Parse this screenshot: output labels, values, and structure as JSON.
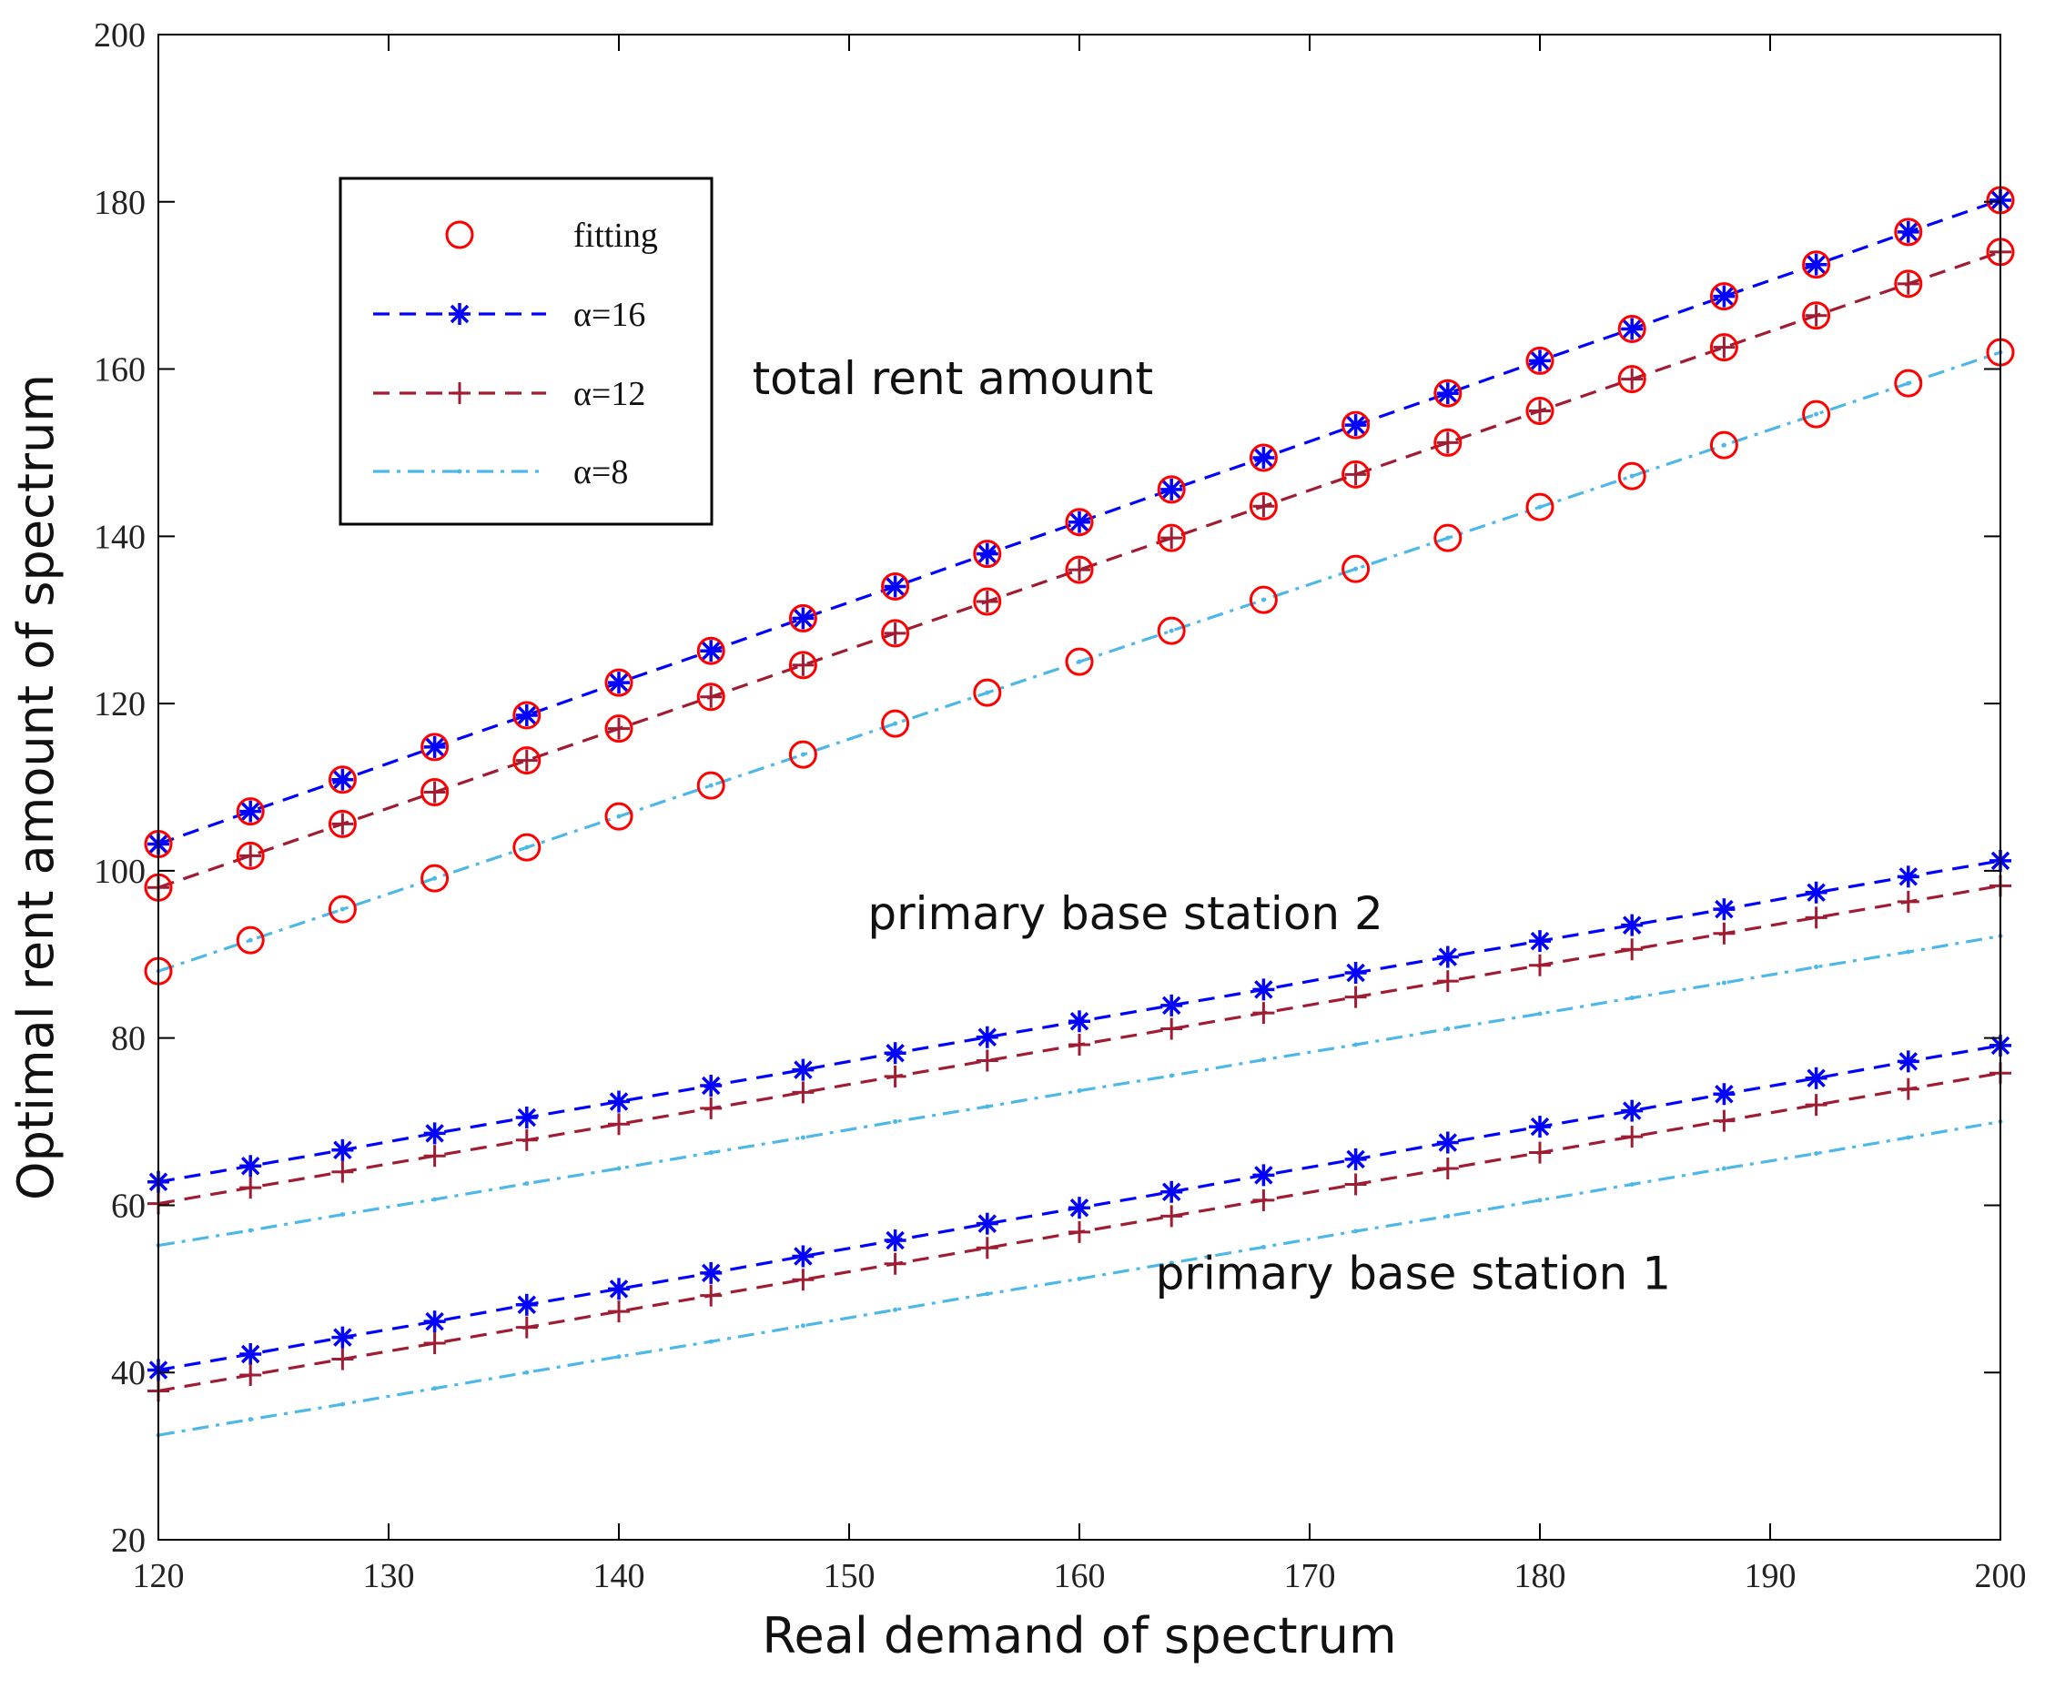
{
  "chart_data": {
    "type": "line",
    "title": "",
    "xlabel": "Real demand of spectrum",
    "ylabel": "Optimal rent amount of spectrum",
    "xlim": [
      120,
      200
    ],
    "ylim": [
      20,
      200
    ],
    "xticks": [
      120,
      130,
      140,
      150,
      160,
      170,
      180,
      190,
      200
    ],
    "yticks": [
      20,
      40,
      60,
      80,
      100,
      120,
      140,
      160,
      180,
      200
    ],
    "grid": false,
    "legend_position": "top-left",
    "x": [
      120,
      124,
      128,
      132,
      136,
      140,
      144,
      148,
      152,
      156,
      160,
      164,
      168,
      172,
      176,
      180,
      184,
      188,
      192,
      196,
      200
    ],
    "legend": [
      {
        "label": "fitting",
        "marker": "circle",
        "color": "#ff0000",
        "line": "none"
      },
      {
        "label": "α=16",
        "marker": "asterisk",
        "color": "#0000ff",
        "line": "dashed"
      },
      {
        "label": "α=12",
        "marker": "plus",
        "color": "#a01c32",
        "line": "dashed"
      },
      {
        "label": "α=8",
        "marker": "dot",
        "color": "#4db8e8",
        "line": "dashdot"
      }
    ],
    "groups": [
      {
        "name": "total rent amount",
        "has_fitting": true,
        "series": [
          {
            "name": "α=16",
            "values": [
              103.2,
              107.1,
              110.9,
              114.8,
              118.6,
              122.5,
              126.3,
              130.2,
              134.0,
              137.9,
              141.7,
              145.6,
              149.4,
              153.3,
              157.1,
              161.0,
              164.8,
              168.7,
              172.5,
              176.4,
              180.2
            ]
          },
          {
            "name": "α=12",
            "values": [
              98.0,
              101.8,
              105.6,
              109.4,
              113.2,
              117.0,
              120.8,
              124.6,
              128.4,
              132.2,
              136.0,
              139.8,
              143.6,
              147.4,
              151.2,
              155.0,
              158.8,
              162.6,
              166.4,
              170.2,
              174.0
            ]
          },
          {
            "name": "α=8",
            "values": [
              88.0,
              91.7,
              95.4,
              99.1,
              102.8,
              106.5,
              110.2,
              113.9,
              117.6,
              121.3,
              125.0,
              128.7,
              132.4,
              136.1,
              139.8,
              143.5,
              147.2,
              150.9,
              154.6,
              158.3,
              162.0
            ]
          }
        ]
      },
      {
        "name": "primary base station 2",
        "has_fitting": false,
        "series": [
          {
            "name": "α=16",
            "values": [
              62.8,
              64.7,
              66.6,
              68.6,
              70.5,
              72.4,
              74.3,
              76.2,
              78.2,
              80.1,
              82.0,
              83.9,
              85.8,
              87.8,
              89.7,
              91.6,
              93.5,
              95.4,
              97.4,
              99.3,
              101.2
            ]
          },
          {
            "name": "α=12",
            "values": [
              60.2,
              62.1,
              64.0,
              65.9,
              67.8,
              69.7,
              71.6,
              73.5,
              75.4,
              77.3,
              79.2,
              81.1,
              83.0,
              84.9,
              86.8,
              88.7,
              90.6,
              92.5,
              94.4,
              96.3,
              98.2
            ]
          },
          {
            "name": "α=8",
            "values": [
              55.2,
              57.0,
              58.9,
              60.7,
              62.6,
              64.4,
              66.3,
              68.1,
              70.0,
              71.8,
              73.7,
              75.5,
              77.4,
              79.2,
              81.1,
              82.9,
              84.8,
              86.6,
              88.5,
              90.3,
              92.2
            ]
          }
        ]
      },
      {
        "name": "primary base station 1",
        "has_fitting": false,
        "series": [
          {
            "name": "α=16",
            "values": [
              40.3,
              42.2,
              44.2,
              46.1,
              48.1,
              50.0,
              51.9,
              53.9,
              55.8,
              57.8,
              59.7,
              61.6,
              63.6,
              65.5,
              67.5,
              69.4,
              71.3,
              73.3,
              75.2,
              77.2,
              79.1
            ]
          },
          {
            "name": "α=12",
            "values": [
              37.8,
              39.7,
              41.6,
              43.5,
              45.4,
              47.3,
              49.2,
              51.1,
              53.0,
              54.9,
              56.8,
              58.7,
              60.6,
              62.5,
              64.4,
              66.3,
              68.2,
              70.1,
              72.0,
              73.9,
              75.8
            ]
          },
          {
            "name": "α=8",
            "values": [
              32.5,
              34.4,
              36.2,
              38.1,
              40.0,
              41.9,
              43.7,
              45.6,
              47.5,
              49.4,
              51.2,
              53.1,
              55.0,
              56.9,
              58.7,
              60.6,
              62.5,
              64.4,
              66.2,
              68.1,
              70.0
            ]
          }
        ]
      }
    ],
    "annotations": [
      {
        "text": "total rent amount",
        "x": 154.5,
        "y": 157
      },
      {
        "text": "primary base station 2",
        "x": 162,
        "y": 93
      },
      {
        "text": "primary base station 1",
        "x": 174.5,
        "y": 50
      }
    ]
  }
}
